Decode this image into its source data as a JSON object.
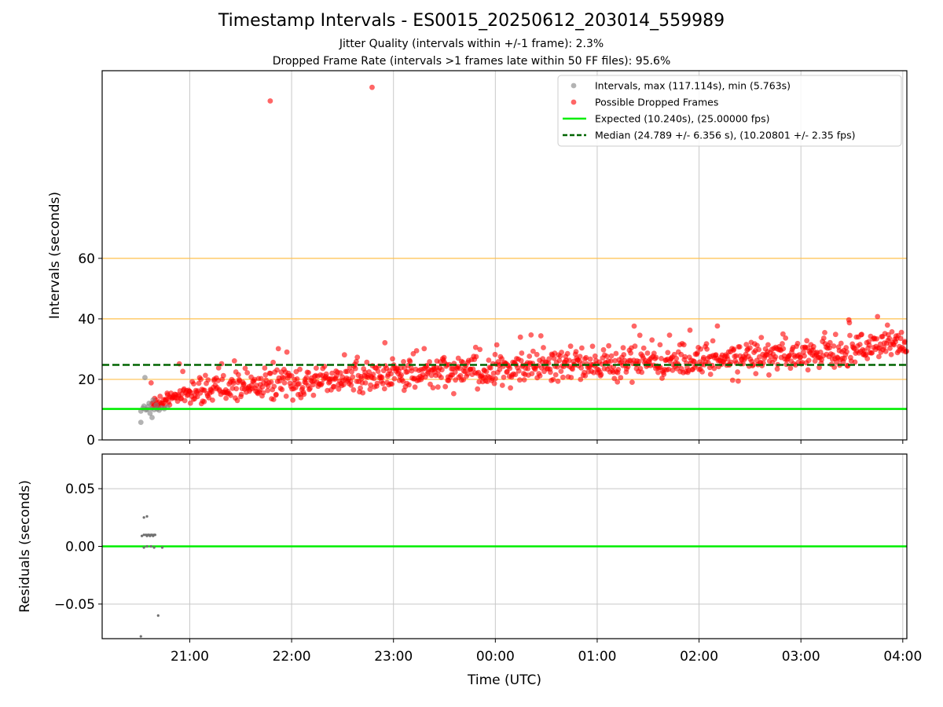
{
  "title": "Timestamp Intervals - ES0015_20250612_203014_559989",
  "subtitle_1": "Jitter Quality (intervals within +/-1 frame): 2.3%",
  "subtitle_2": "Dropped Frame Rate (intervals >1 frames late within 50 FF files): 95.6%",
  "colors": {
    "intervals": "#808080",
    "dropped": "#ff0000",
    "expected": "#00ee00",
    "median": "#006400",
    "threshold_lines": "#ffc04d",
    "grid": "#c8c8c8"
  },
  "chart_data": [
    {
      "type": "scatter",
      "panel": "top",
      "xlabel": "",
      "ylabel": "Intervals (seconds)",
      "x_unit": "hours since 20:00 UTC on plot timeline (ticks labeled by clock time)",
      "xlim": [
        20.14,
        28.04
      ],
      "ylim": [
        0,
        122
      ],
      "x_ticks": [
        21,
        22,
        23,
        24,
        25,
        26,
        27,
        28
      ],
      "x_tick_labels": [
        "21:00",
        "22:00",
        "23:00",
        "00:00",
        "01:00",
        "02:00",
        "03:00",
        "04:00"
      ],
      "y_ticks": [
        0,
        20,
        40,
        60
      ],
      "y_tick_labels": [
        "0",
        "20",
        "40",
        "60"
      ],
      "grid": "vertical",
      "threshold_lines": [
        20,
        40,
        60
      ],
      "legend_placement": "top-right",
      "legend": [
        "Intervals, max (117.114s), min (5.763s)",
        "Possible Dropped Frames",
        "Expected (10.240s), (25.00000 fps)",
        "Median (24.789 +/- 6.356 s), (10.20801 +/- 2.35 fps)"
      ],
      "expected_interval": 10.24,
      "median_interval": 24.789,
      "series": [
        {
          "name": "Intervals, max (117.114s), min (5.763s)",
          "points": [
            [
              20.52,
              5.8
            ],
            [
              20.52,
              9.5
            ],
            [
              20.54,
              10.5
            ],
            [
              20.55,
              11.2
            ],
            [
              20.56,
              20.6
            ],
            [
              20.57,
              9.9
            ],
            [
              20.58,
              10.1
            ],
            [
              20.59,
              11.0
            ],
            [
              20.6,
              12.1
            ],
            [
              20.61,
              8.8
            ],
            [
              20.62,
              10.4
            ],
            [
              20.63,
              7.4
            ],
            [
              20.64,
              13.2
            ],
            [
              20.65,
              10.0
            ],
            [
              20.67,
              11.5
            ],
            [
              20.68,
              10.2
            ],
            [
              20.7,
              9.8
            ],
            [
              20.72,
              10.6
            ],
            [
              20.75,
              10.3
            ],
            [
              20.78,
              10.9
            ]
          ]
        },
        {
          "name": "Possible Dropped Frames",
          "outliers": [
            [
              21.79,
              112.0
            ],
            [
              22.79,
              116.5
            ]
          ],
          "trend": [
            [
              20.62,
              11.5
            ],
            [
              20.85,
              14.5
            ],
            [
              21.2,
              17.0
            ],
            [
              22.0,
              19.0
            ],
            [
              23.0,
              21.5
            ],
            [
              24.0,
              23.0
            ],
            [
              25.0,
              25.0
            ],
            [
              26.0,
              26.0
            ],
            [
              27.0,
              28.5
            ],
            [
              28.04,
              32.0
            ]
          ],
          "spread": 4.5,
          "count": 1100
        }
      ]
    },
    {
      "type": "scatter",
      "panel": "bottom",
      "xlabel": "Time (UTC)",
      "ylabel": "Residuals (seconds)",
      "xlim": [
        20.14,
        28.04
      ],
      "ylim": [
        -0.08,
        0.08
      ],
      "x_ticks": [
        21,
        22,
        23,
        24,
        25,
        26,
        27,
        28
      ],
      "x_tick_labels": [
        "21:00",
        "22:00",
        "23:00",
        "00:00",
        "01:00",
        "02:00",
        "03:00",
        "04:00"
      ],
      "y_ticks": [
        -0.05,
        0.0,
        0.05
      ],
      "y_tick_labels": [
        "−0.05",
        "0.00",
        "0.05"
      ],
      "grid": "both",
      "reference_line": 0.0,
      "points": [
        [
          20.52,
          -0.078
        ],
        [
          20.55,
          0.025
        ],
        [
          20.58,
          0.026
        ],
        [
          20.53,
          0.009
        ],
        [
          20.55,
          0.01
        ],
        [
          20.57,
          0.01
        ],
        [
          20.58,
          0.009
        ],
        [
          20.59,
          0.01
        ],
        [
          20.6,
          0.01
        ],
        [
          20.61,
          0.009
        ],
        [
          20.62,
          0.01
        ],
        [
          20.63,
          0.01
        ],
        [
          20.64,
          0.009
        ],
        [
          20.65,
          0.01
        ],
        [
          20.66,
          0.01
        ],
        [
          20.55,
          -0.001
        ],
        [
          20.58,
          0.0
        ],
        [
          20.62,
          0.0
        ],
        [
          20.65,
          -0.001
        ],
        [
          20.73,
          -0.001
        ],
        [
          20.69,
          -0.06
        ]
      ]
    }
  ]
}
